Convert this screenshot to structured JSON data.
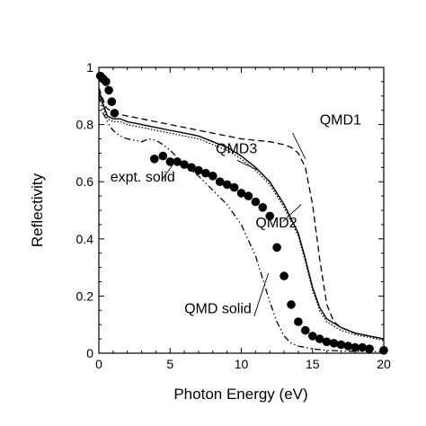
{
  "chart_data": {
    "type": "line",
    "xlabel": "Photon Energy (eV)",
    "ylabel": "Reflectivity",
    "xlim": [
      0,
      20
    ],
    "ylim": [
      0,
      1
    ],
    "xticks": [
      0,
      5,
      10,
      15,
      20
    ],
    "yticks": [
      0,
      0.2,
      0.4,
      0.6,
      0.8,
      1
    ],
    "grid": false,
    "series": [
      {
        "name": "QMD1",
        "style": "dashed",
        "x": [
          0,
          0.2,
          0.5,
          1,
          1.5,
          2,
          3,
          4,
          5,
          6,
          7,
          8,
          9,
          10,
          11,
          12,
          12.5,
          13,
          13.5,
          14,
          14.5,
          15,
          15.5,
          16,
          16.5,
          17,
          18,
          19,
          20
        ],
        "y": [
          0.93,
          0.9,
          0.86,
          0.84,
          0.835,
          0.83,
          0.82,
          0.81,
          0.8,
          0.79,
          0.78,
          0.77,
          0.76,
          0.75,
          0.745,
          0.74,
          0.735,
          0.73,
          0.72,
          0.7,
          0.65,
          0.52,
          0.33,
          0.17,
          0.11,
          0.09,
          0.07,
          0.06,
          0.05
        ]
      },
      {
        "name": "QMD2",
        "style": "solid",
        "x": [
          0,
          0.3,
          0.6,
          1,
          1.5,
          2,
          3,
          4,
          5,
          6,
          7,
          8,
          9,
          10,
          11,
          12,
          13,
          13.5,
          14,
          14.5,
          15,
          15.5,
          16,
          17,
          18,
          19,
          20
        ],
        "y": [
          0.92,
          0.87,
          0.83,
          0.82,
          0.82,
          0.81,
          0.8,
          0.79,
          0.78,
          0.77,
          0.76,
          0.74,
          0.72,
          0.69,
          0.65,
          0.6,
          0.52,
          0.47,
          0.42,
          0.33,
          0.23,
          0.16,
          0.12,
          0.09,
          0.07,
          0.06,
          0.05
        ]
      },
      {
        "name": "QMD3",
        "style": "dotted",
        "x": [
          0,
          0.3,
          0.6,
          1,
          1.5,
          2,
          3,
          4,
          5,
          6,
          7,
          8,
          9,
          10,
          11,
          12,
          13,
          13.5,
          14,
          14.5,
          15,
          15.5,
          16,
          17,
          18,
          19,
          20
        ],
        "y": [
          0.91,
          0.86,
          0.82,
          0.81,
          0.81,
          0.8,
          0.79,
          0.78,
          0.77,
          0.76,
          0.75,
          0.73,
          0.71,
          0.68,
          0.64,
          0.59,
          0.51,
          0.46,
          0.41,
          0.32,
          0.22,
          0.15,
          0.11,
          0.08,
          0.065,
          0.055,
          0.045
        ]
      },
      {
        "name": "QMD solid",
        "style": "dash-dot-dot",
        "x": [
          0,
          0.3,
          0.7,
          1,
          1.5,
          2,
          2.5,
          3,
          3.5,
          4,
          4.5,
          5,
          6,
          7,
          8,
          9,
          10,
          11,
          11.5,
          12,
          12.5,
          13,
          13.5,
          14,
          15,
          16,
          17,
          18,
          19,
          20
        ],
        "y": [
          0.9,
          0.84,
          0.8,
          0.78,
          0.76,
          0.75,
          0.745,
          0.74,
          0.75,
          0.745,
          0.73,
          0.71,
          0.66,
          0.62,
          0.57,
          0.52,
          0.45,
          0.34,
          0.26,
          0.18,
          0.11,
          0.06,
          0.035,
          0.025,
          0.015,
          0.01,
          0.008,
          0.006,
          0.005,
          0.005
        ]
      },
      {
        "name": "expt. solid",
        "style": "markers",
        "x": [
          0.1,
          0.3,
          0.5,
          0.7,
          0.9,
          1.1,
          3.9,
          4.5,
          5.0,
          5.5,
          6.0,
          6.5,
          7.0,
          7.5,
          8.0,
          8.5,
          9.0,
          9.5,
          10.0,
          10.5,
          11.0,
          11.5,
          12.0,
          12.5,
          13.0,
          13.5,
          14.0,
          14.5,
          15.0,
          15.5,
          16.0,
          16.5,
          17.0,
          17.5,
          18.0,
          18.5,
          19.0,
          20.0
        ],
        "y": [
          0.97,
          0.96,
          0.95,
          0.92,
          0.88,
          0.84,
          0.68,
          0.69,
          0.67,
          0.67,
          0.66,
          0.65,
          0.64,
          0.63,
          0.62,
          0.6,
          0.59,
          0.58,
          0.56,
          0.55,
          0.53,
          0.51,
          0.48,
          0.37,
          0.27,
          0.17,
          0.11,
          0.08,
          0.06,
          0.05,
          0.04,
          0.035,
          0.03,
          0.025,
          0.02,
          0.02,
          0.015,
          0.01
        ]
      }
    ],
    "annotations": [
      {
        "text": "QMD1",
        "x": 15.5,
        "y": 0.8
      },
      {
        "text": "QMD3",
        "x": 8.2,
        "y": 0.7
      },
      {
        "text": "expt. solid",
        "x": 0.8,
        "y": 0.6
      },
      {
        "text": "QMD2",
        "x": 11.0,
        "y": 0.44
      },
      {
        "text": "QMD solid",
        "x": 6.0,
        "y": 0.14
      }
    ]
  }
}
